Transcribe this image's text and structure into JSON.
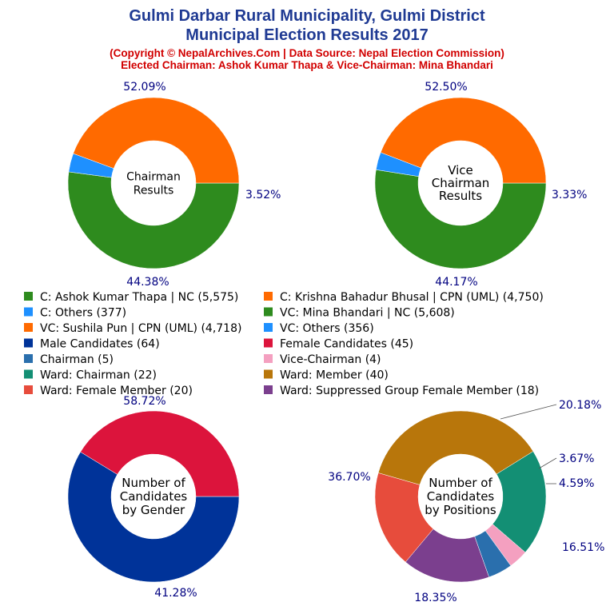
{
  "header": {
    "title_line1": "Gulmi Darbar Rural Municipality, Gulmi District",
    "title_line2": "Municipal Election Results 2017",
    "subtitle_line1": "(Copyright © NepalArchives.Com | Data Source: Nepal Election Commission)",
    "subtitle_line2": "Elected Chairman: Ashok Kumar Thapa & Vice-Chairman: Mina Bhandari"
  },
  "colors": {
    "green": "#2e8b1e",
    "orange": "#ff6a00",
    "blue": "#1e90ff",
    "navy": "#003399",
    "crimson": "#dc143c",
    "steel": "#2a6fad",
    "pink": "#f4a0c0",
    "teal": "#138f74",
    "gold": "#b8760b",
    "red": "#e74c3c",
    "purple": "#7b3f8e",
    "title": "#1f3a93",
    "subtitle": "#d10000",
    "pct": "#000080"
  },
  "chart_data": [
    {
      "type": "pie",
      "donut": true,
      "center_label": [
        "Chairman",
        "Results"
      ],
      "categories": [
        "C: Ashok Kumar Thapa | NC",
        "C: Others",
        "C: Krishna Bahadur Bhusal | CPN (UML)"
      ],
      "values": [
        5575,
        377,
        4750
      ],
      "percent_labels": [
        "52.09%",
        "3.52%",
        "44.38%"
      ],
      "colors": [
        "#2e8b1e",
        "#1e90ff",
        "#ff6a00"
      ]
    },
    {
      "type": "pie",
      "donut": true,
      "center_label": [
        "Vice",
        "Chairman",
        "Results"
      ],
      "categories": [
        "VC: Mina Bhandari | NC",
        "VC: Others",
        "VC: Sushila Pun | CPN (UML)"
      ],
      "values": [
        5608,
        356,
        4718
      ],
      "percent_labels": [
        "52.50%",
        "3.33%",
        "44.17%"
      ],
      "colors": [
        "#2e8b1e",
        "#1e90ff",
        "#ff6a00"
      ]
    },
    {
      "type": "pie",
      "donut": true,
      "center_label": [
        "Number of",
        "Candidates",
        "by Gender"
      ],
      "categories": [
        "Male Candidates",
        "Female Candidates"
      ],
      "values": [
        64,
        45
      ],
      "percent_labels": [
        "58.72%",
        "41.28%"
      ],
      "colors": [
        "#003399",
        "#dc143c"
      ]
    },
    {
      "type": "pie",
      "donut": true,
      "center_label": [
        "Number of",
        "Candidates",
        "by Positions"
      ],
      "categories": [
        "Ward: Chairman",
        "Vice-Chairman",
        "Chairman",
        "Ward: Suppressed Group Female Member",
        "Ward: Female Member",
        "Ward: Member"
      ],
      "values": [
        22,
        4,
        5,
        18,
        20,
        40
      ],
      "percent_labels": [
        "20.18%",
        "3.67%",
        "4.59%",
        "16.51%",
        "18.35%",
        "36.70%"
      ],
      "colors": [
        "#138f74",
        "#f4a0c0",
        "#2a6fad",
        "#7b3f8e",
        "#e74c3c",
        "#b8760b"
      ]
    }
  ],
  "legend": [
    {
      "label": "C: Ashok Kumar Thapa | NC (5,575)",
      "color": "#2e8b1e"
    },
    {
      "label": "C: Krishna Bahadur Bhusal | CPN (UML) (4,750)",
      "color": "#ff6a00"
    },
    {
      "label": "C: Others (377)",
      "color": "#1e90ff"
    },
    {
      "label": "VC: Mina Bhandari | NC (5,608)",
      "color": "#2e8b1e"
    },
    {
      "label": "VC: Sushila Pun | CPN (UML) (4,718)",
      "color": "#ff6a00"
    },
    {
      "label": "VC: Others (356)",
      "color": "#1e90ff"
    },
    {
      "label": "Male Candidates (64)",
      "color": "#003399"
    },
    {
      "label": "Female Candidates (45)",
      "color": "#dc143c"
    },
    {
      "label": "Chairman (5)",
      "color": "#2a6fad"
    },
    {
      "label": "Vice-Chairman (4)",
      "color": "#f4a0c0"
    },
    {
      "label": "Ward: Chairman (22)",
      "color": "#138f74"
    },
    {
      "label": "Ward: Member (40)",
      "color": "#b8760b"
    },
    {
      "label": "Ward: Female Member (20)",
      "color": "#e74c3c"
    },
    {
      "label": "Ward: Suppressed Group Female Member (18)",
      "color": "#7b3f8e"
    }
  ]
}
